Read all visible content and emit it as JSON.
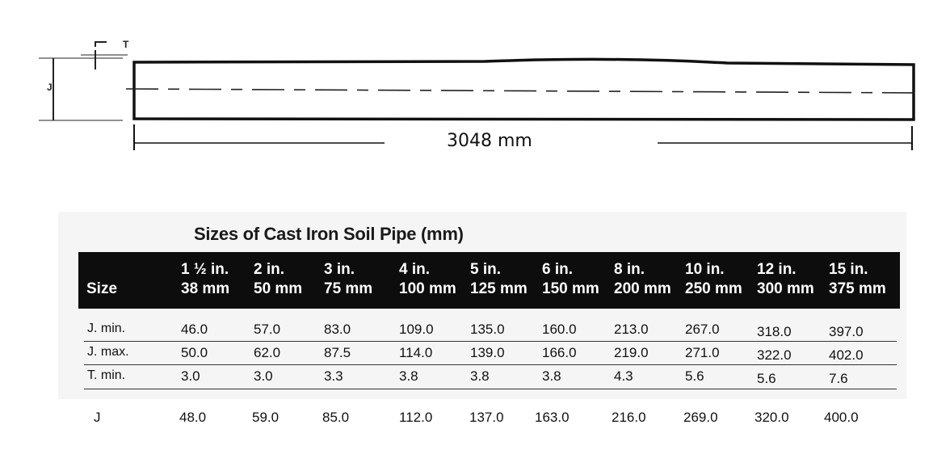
{
  "diagram": {
    "length_label": "3048 mm",
    "t_label": "T",
    "j_label": "J"
  },
  "table": {
    "title": "Sizes of Cast Iron Soil Pipe (mm)",
    "size_header": "Size",
    "columns": [
      {
        "inch": "1 ½ in.",
        "mm": "38 mm"
      },
      {
        "inch": "2 in.",
        "mm": "50 mm"
      },
      {
        "inch": "3 in.",
        "mm": "75 mm"
      },
      {
        "inch": "4 in.",
        "mm": "100 mm"
      },
      {
        "inch": "5 in.",
        "mm": "125 mm"
      },
      {
        "inch": "6 in.",
        "mm": "150 mm"
      },
      {
        "inch": "8 in.",
        "mm": "200 mm"
      },
      {
        "inch": "10 in.",
        "mm": "250 mm"
      },
      {
        "inch": "12 in.",
        "mm": "300 mm"
      },
      {
        "inch": "15 in.",
        "mm": "375 mm"
      }
    ],
    "rows": [
      {
        "label": "J. min.",
        "values": [
          "46.0",
          "57.0",
          "83.0",
          "109.0",
          "135.0",
          "160.0",
          "213.0",
          "267.0",
          "318.0",
          "397.0"
        ]
      },
      {
        "label": "J. max.",
        "values": [
          "50.0",
          "62.0",
          "87.5",
          "114.0",
          "139.0",
          "166.0",
          "219.0",
          "271.0",
          "322.0",
          "402.0"
        ]
      },
      {
        "label": "T. min.",
        "values": [
          "3.0",
          "3.0",
          "3.3",
          "3.8",
          "3.8",
          "3.8",
          "4.3",
          "5.6",
          "5.6",
          "7.6"
        ]
      }
    ]
  },
  "j_row": {
    "label": "J",
    "values": [
      "48.0",
      "59.0",
      "85.0",
      "112.0",
      "137.0",
      "163.0",
      "216.0",
      "269.0",
      "320.0",
      "400.0"
    ]
  }
}
